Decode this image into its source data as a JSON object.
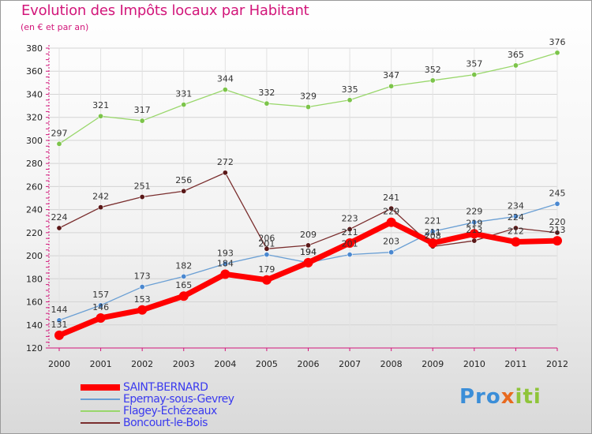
{
  "title": "Evolution des Impôts locaux par Habitant",
  "subtitle": "(en € et par an)",
  "logo": {
    "part1": "Pro",
    "part2": "x",
    "part3": "iti"
  },
  "chart_data": {
    "type": "line",
    "title": "Evolution des Impôts locaux par Habitant",
    "subtitle": "(en € et par an)",
    "x": [
      "2000",
      "2001",
      "2002",
      "2003",
      "2004",
      "2005",
      "2006",
      "2007",
      "2008",
      "2009",
      "2010",
      "2011",
      "2012"
    ],
    "ylim": [
      120,
      380
    ],
    "yticks": [
      120,
      140,
      160,
      180,
      200,
      220,
      240,
      260,
      280,
      300,
      320,
      340,
      360,
      380
    ],
    "grid": true,
    "legend_position": "bottom-left",
    "series": [
      {
        "name": "SAINT-BERNARD",
        "color": "#ff0000",
        "values": [
          131,
          146,
          153,
          165,
          184,
          179,
          194,
          211,
          229,
          211,
          219,
          212,
          213
        ],
        "labels": [
          "131",
          "146",
          "153",
          "165",
          "184",
          "179",
          "194",
          "211",
          "229",
          "211",
          "219",
          "212",
          "213"
        ]
      },
      {
        "name": "Epernay-sous-Gevrey",
        "color": "#6a9fd4",
        "values": [
          144,
          157,
          173,
          182,
          193,
          201,
          194,
          201,
          203,
          221,
          229,
          234,
          245
        ],
        "labels": [
          "144",
          "157",
          "173",
          "182",
          "193",
          "201",
          "194",
          "201",
          "203",
          "221",
          "229",
          "234",
          "245"
        ]
      },
      {
        "name": "Flagey-Echézeaux",
        "color": "#99d76b",
        "values": [
          297,
          321,
          317,
          331,
          344,
          332,
          329,
          335,
          347,
          352,
          357,
          365,
          376
        ],
        "labels": [
          "297",
          "321",
          "317",
          "331",
          "344",
          "332",
          "329",
          "335",
          "347",
          "352",
          "357",
          "365",
          "376"
        ]
      },
      {
        "name": "Boncourt-le-Bois",
        "color": "#7a2e2e",
        "values": [
          224,
          242,
          251,
          256,
          272,
          206,
          209,
          223,
          241,
          208,
          213,
          224,
          220
        ],
        "labels": [
          "224",
          "242",
          "251",
          "256",
          "272",
          "206",
          "209",
          "223",
          "241",
          "208",
          "213",
          "224",
          "220"
        ]
      }
    ]
  }
}
